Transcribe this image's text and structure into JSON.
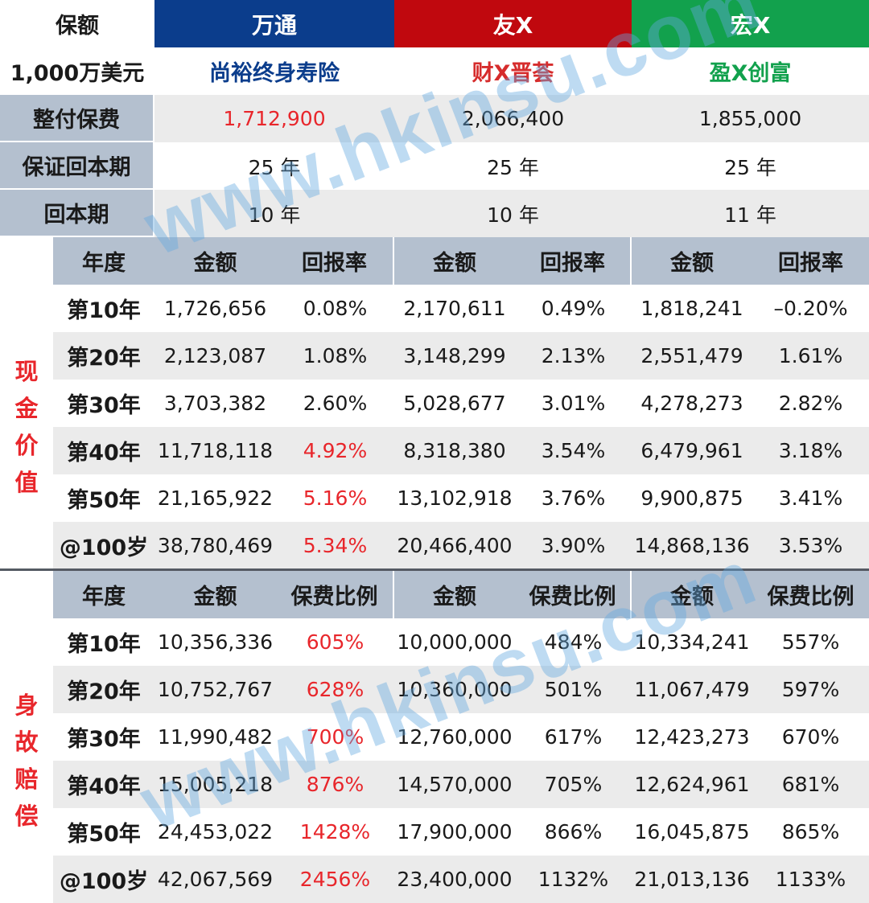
{
  "header": {
    "corner_label": "保额",
    "amount_label": "1,000万美元",
    "companies": [
      {
        "name": "万通",
        "color": "#0b3d8c",
        "product": "尚裕终身寿险",
        "product_color": "#0b3d8c"
      },
      {
        "name": "友X",
        "color": "#c0080e",
        "product": "财X晋荟",
        "product_color": "#d62c2c"
      },
      {
        "name": "宏X",
        "color": "#12a14d",
        "product": "盈X创富",
        "product_color": "#12a14d"
      }
    ]
  },
  "summary_rows": [
    {
      "label": "整付保费",
      "values": [
        "1,712,900",
        "2,066,400",
        "1,855,000"
      ],
      "highlight": [
        true,
        false,
        false
      ]
    },
    {
      "label": "保证回本期",
      "values": [
        "25 年",
        "25 年",
        "25 年"
      ],
      "highlight": [
        false,
        false,
        false
      ]
    },
    {
      "label": "回本期",
      "values": [
        "10 年",
        "10 年",
        "11 年"
      ],
      "highlight": [
        false,
        false,
        false
      ]
    }
  ],
  "sections": [
    {
      "side_label": [
        "现",
        "金",
        "价",
        "值"
      ],
      "columns": {
        "year": "年度",
        "amount": "金额",
        "ratio": "回报率"
      },
      "rows": [
        {
          "year": "第10年",
          "cells": [
            "1,726,656",
            "0.08%",
            "2,170,611",
            "0.49%",
            "1,818,241",
            "–0.20%"
          ],
          "red": [
            false,
            false,
            false,
            false,
            false,
            false
          ]
        },
        {
          "year": "第20年",
          "cells": [
            "2,123,087",
            "1.08%",
            "3,148,299",
            "2.13%",
            "2,551,479",
            "1.61%"
          ],
          "red": [
            false,
            false,
            false,
            false,
            false,
            false
          ]
        },
        {
          "year": "第30年",
          "cells": [
            "3,703,382",
            "2.60%",
            "5,028,677",
            "3.01%",
            "4,278,273",
            "2.82%"
          ],
          "red": [
            false,
            false,
            false,
            false,
            false,
            false
          ]
        },
        {
          "year": "第40年",
          "cells": [
            "11,718,118",
            "4.92%",
            "8,318,380",
            "3.54%",
            "6,479,961",
            "3.18%"
          ],
          "red": [
            false,
            true,
            false,
            false,
            false,
            false
          ]
        },
        {
          "year": "第50年",
          "cells": [
            "21,165,922",
            "5.16%",
            "13,102,918",
            "3.76%",
            "9,900,875",
            "3.41%"
          ],
          "red": [
            false,
            true,
            false,
            false,
            false,
            false
          ]
        },
        {
          "year": "@100岁",
          "cells": [
            "38,780,469",
            "5.34%",
            "20,466,400",
            "3.90%",
            "14,868,136",
            "3.53%"
          ],
          "red": [
            false,
            true,
            false,
            false,
            false,
            false
          ]
        }
      ]
    },
    {
      "side_label": [
        "身",
        "故",
        "赔",
        "偿"
      ],
      "columns": {
        "year": "年度",
        "amount": "金额",
        "ratio": "保费比例"
      },
      "rows": [
        {
          "year": "第10年",
          "cells": [
            "10,356,336",
            "605%",
            "10,000,000",
            "484%",
            "10,334,241",
            "557%"
          ],
          "red": [
            false,
            true,
            false,
            false,
            false,
            false
          ]
        },
        {
          "year": "第20年",
          "cells": [
            "10,752,767",
            "628%",
            "10,360,000",
            "501%",
            "11,067,479",
            "597%"
          ],
          "red": [
            false,
            true,
            false,
            false,
            false,
            false
          ]
        },
        {
          "year": "第30年",
          "cells": [
            "11,990,482",
            "700%",
            "12,760,000",
            "617%",
            "12,423,273",
            "670%"
          ],
          "red": [
            false,
            true,
            false,
            false,
            false,
            false
          ]
        },
        {
          "year": "第40年",
          "cells": [
            "15,005,218",
            "876%",
            "14,570,000",
            "705%",
            "12,624,961",
            "681%"
          ],
          "red": [
            false,
            true,
            false,
            false,
            false,
            false
          ]
        },
        {
          "year": "第50年",
          "cells": [
            "24,453,022",
            "1428%",
            "17,900,000",
            "866%",
            "16,045,875",
            "865%"
          ],
          "red": [
            false,
            true,
            false,
            false,
            false,
            false
          ]
        },
        {
          "year": "@100岁",
          "cells": [
            "42,067,569",
            "2456%",
            "23,400,000",
            "1132%",
            "21,013,136",
            "1133%"
          ],
          "red": [
            false,
            true,
            false,
            false,
            false,
            false
          ]
        }
      ]
    }
  ],
  "colors": {
    "label_bg": "#b4c0cf",
    "zebra_bg": "#ebebeb",
    "highlight_red": "#e8262b"
  },
  "watermark": "www.hkinsu.com"
}
